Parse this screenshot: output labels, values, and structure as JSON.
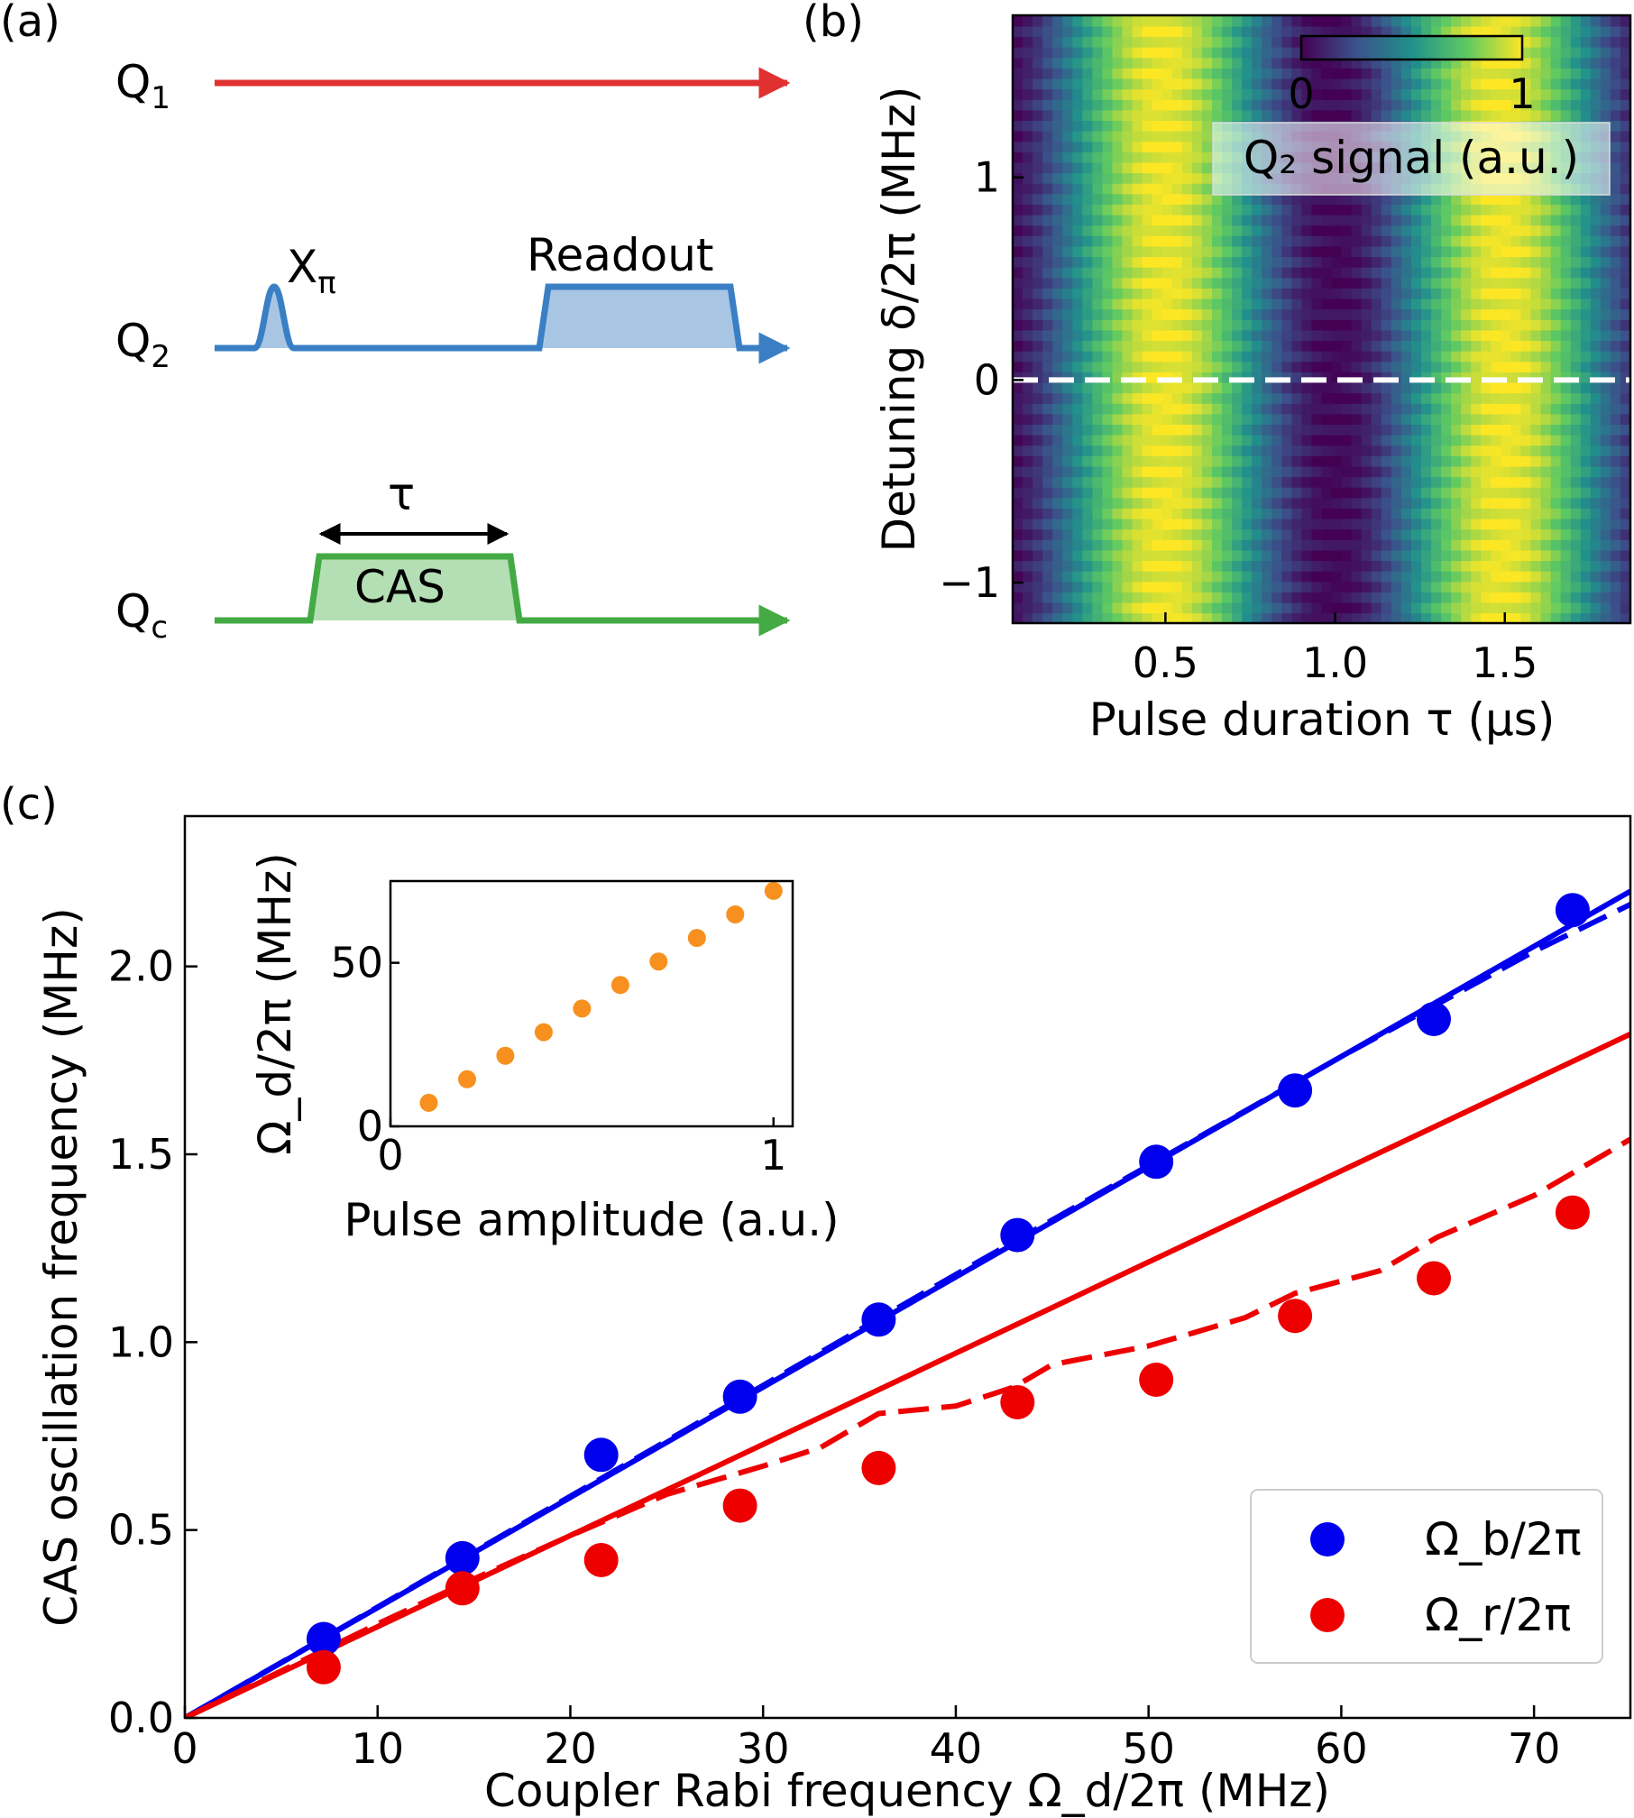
{
  "panels": {
    "a": {
      "label": "(a)",
      "lines": [
        {
          "name": "Q",
          "sub": "1",
          "color": "#e03030"
        },
        {
          "name": "Q",
          "sub": "2",
          "color": "#3a7fc4"
        },
        {
          "name": "Q",
          "sub": "c",
          "color": "#44aa44"
        }
      ],
      "xpi": {
        "base": "X",
        "sub": "π"
      },
      "readout_label": "Readout",
      "tau_label": "τ",
      "cas_label": "CAS"
    },
    "b": {
      "label": "(b)",
      "xlabel": "Pulse duration τ (µs)",
      "ylabel": "Detuning δ/2π (MHz)",
      "colorbar": {
        "label": "Q₂ signal (a.u.)",
        "ticks": [
          "0",
          "1"
        ],
        "colormap": "viridis"
      }
    },
    "c": {
      "label": "(c)"
    }
  },
  "chart_data": [
    {
      "type": "heatmap",
      "panel": "b",
      "xlabel": "Pulse duration τ (µs)",
      "ylabel": "Detuning δ/2π (MHz)",
      "xlim": [
        0.05,
        1.87
      ],
      "ylim": [
        -1.2,
        1.8
      ],
      "xticks": [
        "0.5",
        "1.0",
        "1.5"
      ],
      "xtick_values": [
        0.5,
        1.0,
        1.5
      ],
      "yticks": [
        "1",
        "0",
        "−1"
      ],
      "ytick_values": [
        1,
        0,
        -1
      ],
      "z_range": [
        0,
        1
      ],
      "colorbar_label": "Q₂ signal (a.u.)",
      "oscillation_freq_at_zero_detuning_MHz": 1.0,
      "reference_line": {
        "y": 0,
        "style": "dashed",
        "color": "#ffffff"
      }
    },
    {
      "type": "scatter",
      "panel": "c",
      "xlabel": "Coupler Rabi frequency Ω_d/2π (MHz)",
      "ylabel": "CAS oscillation frequency (MHz)",
      "xlim": [
        0,
        75
      ],
      "ylim": [
        0,
        2.4
      ],
      "xticks": [
        0,
        10,
        20,
        30,
        40,
        50,
        60,
        70
      ],
      "yticks": [
        0.0,
        0.5,
        1.0,
        1.5,
        2.0
      ],
      "ytick_labels": [
        "0.0",
        "0.5",
        "1.0",
        "1.5",
        "2.0"
      ],
      "legend": {
        "position": "lower-right",
        "entries": [
          "Ω_b/2π",
          "Ω_r/2π"
        ]
      },
      "series": [
        {
          "name": "Ω_b/2π",
          "kind": "points",
          "color": "#0000ee",
          "x": [
            7.2,
            14.4,
            21.6,
            28.8,
            36.0,
            43.2,
            50.4,
            57.6,
            64.8,
            72.0
          ],
          "y": [
            0.21,
            0.425,
            0.7,
            0.855,
            1.06,
            1.285,
            1.48,
            1.67,
            1.86,
            2.15
          ]
        },
        {
          "name": "Ω_r/2π",
          "kind": "points",
          "color": "#ee0000",
          "x": [
            7.2,
            14.4,
            21.6,
            28.8,
            36.0,
            43.2,
            50.4,
            57.6,
            64.8,
            72.0
          ],
          "y": [
            0.135,
            0.345,
            0.42,
            0.565,
            0.665,
            0.84,
            0.9,
            1.07,
            1.17,
            1.345
          ]
        },
        {
          "kind": "solid-line",
          "color": "#0000ee",
          "x": [
            0,
            75
          ],
          "y": [
            0,
            2.2
          ]
        },
        {
          "kind": "dashed-line",
          "color": "#0000ee",
          "x": [
            0,
            10,
            20,
            30,
            40,
            50,
            60,
            70,
            75
          ],
          "y": [
            0,
            0.295,
            0.59,
            0.885,
            1.18,
            1.47,
            1.76,
            2.04,
            2.165
          ]
        },
        {
          "kind": "solid-line",
          "color": "#ee0000",
          "x": [
            0,
            75
          ],
          "y": [
            0,
            1.82
          ]
        },
        {
          "kind": "dashed-line",
          "color": "#ee0000",
          "x": [
            0,
            5,
            10,
            15,
            20,
            25,
            30,
            33,
            36,
            40,
            43,
            45,
            50,
            55,
            57.6,
            62,
            65,
            70,
            75
          ],
          "y": [
            0,
            0.125,
            0.25,
            0.37,
            0.485,
            0.595,
            0.67,
            0.72,
            0.81,
            0.83,
            0.88,
            0.94,
            0.99,
            1.065,
            1.13,
            1.19,
            1.28,
            1.39,
            1.54
          ]
        }
      ]
    },
    {
      "type": "scatter",
      "panel": "c-inset",
      "xlabel": "Pulse amplitude (a.u.)",
      "ylabel": "Ω_d/2π (MHz)",
      "xlim": [
        0,
        1.05
      ],
      "ylim": [
        0,
        75
      ],
      "xticks": [
        0,
        1
      ],
      "yticks": [
        0,
        50
      ],
      "series": [
        {
          "kind": "points",
          "color": "#f7901e",
          "x": [
            0.1,
            0.2,
            0.3,
            0.4,
            0.5,
            0.6,
            0.7,
            0.8,
            0.9,
            1.0
          ],
          "y": [
            7.2,
            14.4,
            21.6,
            28.8,
            36.0,
            43.2,
            50.4,
            57.6,
            64.8,
            72.0
          ]
        }
      ]
    }
  ]
}
